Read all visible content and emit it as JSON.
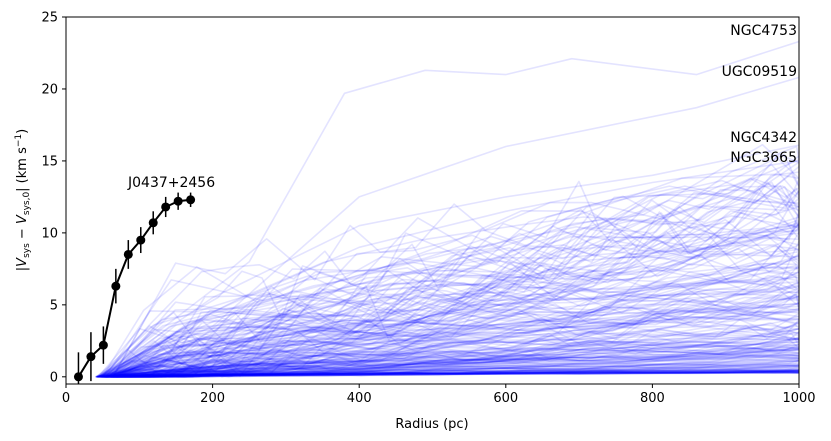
{
  "chart_data": {
    "type": "line",
    "xlabel": "Radius (pc)",
    "ylabel": {
      "prefix": "|",
      "v1": "V",
      "s1": "sys",
      "minus": " − ",
      "v2": "V",
      "s2": "sys,0",
      "suffix": "| (km s",
      "sup": "−1",
      "close": ")"
    },
    "xlim": [
      0,
      1000
    ],
    "ylim": [
      -0.5,
      25
    ],
    "xticks": [
      "0",
      "200",
      "400",
      "600",
      "800",
      "1000"
    ],
    "yticks": [
      "0",
      "5",
      "10",
      "15",
      "20",
      "25"
    ],
    "grid": false,
    "highlight": {
      "name": "J0437+2456",
      "color": "#000000",
      "points": [
        {
          "x": 17,
          "y": 0.0,
          "err": 1.7
        },
        {
          "x": 34,
          "y": 1.4,
          "err": 1.7
        },
        {
          "x": 51,
          "y": 2.2,
          "err": 1.3
        },
        {
          "x": 68,
          "y": 6.3,
          "err": 1.2
        },
        {
          "x": 85,
          "y": 8.5,
          "err": 1.0
        },
        {
          "x": 102,
          "y": 9.5,
          "err": 0.9
        },
        {
          "x": 119,
          "y": 10.7,
          "err": 0.8
        },
        {
          "x": 136,
          "y": 11.8,
          "err": 0.7
        },
        {
          "x": 153,
          "y": 12.2,
          "err": 0.6
        },
        {
          "x": 170,
          "y": 12.3,
          "err": 0.5
        }
      ]
    },
    "background_series": {
      "color": "#0000ff",
      "named": [
        {
          "name": "NGC4753",
          "x": [
            45,
            250,
            380,
            490,
            600,
            690,
            860,
            1000
          ],
          "y": [
            0,
            8.0,
            19.7,
            21.3,
            21.0,
            22.1,
            21.0,
            23.3
          ]
        },
        {
          "name": "UGC09519",
          "x": [
            45,
            200,
            400,
            600,
            860,
            1000
          ],
          "y": [
            0,
            3.5,
            12.5,
            16.0,
            18.7,
            20.8
          ]
        },
        {
          "name": "NGC4342",
          "x": [
            45,
            200,
            400,
            600,
            800,
            1000
          ],
          "y": [
            0,
            5.5,
            10.5,
            12.5,
            14.0,
            16.1
          ]
        },
        {
          "name": "NGC3665",
          "x": [
            45,
            200,
            400,
            600,
            800,
            1000
          ],
          "y": [
            0,
            4.5,
            9.0,
            11.5,
            13.5,
            15.0
          ]
        }
      ],
      "count_unlabeled": 230,
      "ymax_range": [
        0.3,
        14.5
      ]
    }
  }
}
